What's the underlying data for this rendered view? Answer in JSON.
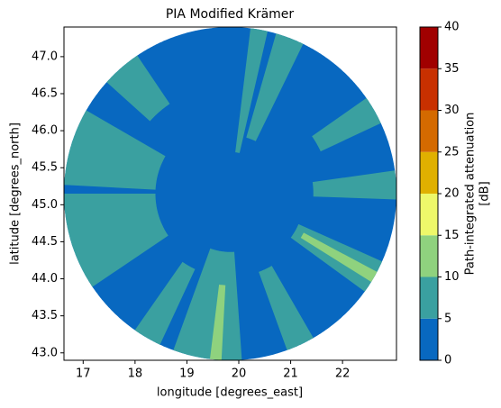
{
  "chart_data": {
    "type": "radar-field",
    "title": "PIA Modified Krämer",
    "x_label": "longitude [degrees_east]",
    "y_label": "latitude [degrees_north]",
    "xlim": [
      16.63,
      23.04
    ],
    "ylim": [
      42.9,
      47.4
    ],
    "xticks": [
      17,
      18,
      19,
      20,
      21,
      22
    ],
    "yticks": [
      {
        "value": 43,
        "label": "43.0"
      },
      43.5,
      {
        "value": 44,
        "label": "44.0"
      },
      44.5,
      {
        "value": 45,
        "label": "45.0"
      },
      45.5,
      {
        "value": 46,
        "label": "46.0"
      },
      46.5,
      {
        "value": 47,
        "label": "47.0"
      }
    ],
    "colorbar_label": [
      "Path-integrated attenuation",
      "[dB]"
    ],
    "levels": [
      0,
      5,
      10,
      15,
      20,
      25,
      30,
      35,
      40
    ],
    "colors": [
      "#0868c0",
      "#3aa0a0",
      "#8fd27e",
      "#eef86a",
      "#e0b000",
      "#d46a00",
      "#c83000",
      "#a00000"
    ],
    "wedges": [
      {
        "az": [
          0,
          360
        ],
        "range": [
          0,
          1
        ],
        "value": 2
      },
      {
        "az": [
          236,
          270
        ],
        "range": [
          0.45,
          1
        ],
        "value": 7
      },
      {
        "az": [
          273,
          300
        ],
        "range": [
          0.45,
          1
        ],
        "value": 7
      },
      {
        "az": [
          312,
          326
        ],
        "range": [
          0.65,
          1
        ],
        "value": 7
      },
      {
        "az": [
          7,
          13
        ],
        "range": [
          0.25,
          1
        ],
        "value": 7
      },
      {
        "az": [
          16,
          26
        ],
        "range": [
          0.35,
          1
        ],
        "value": 7
      },
      {
        "az": [
          55,
          65
        ],
        "range": [
          0.6,
          1
        ],
        "value": 7
      },
      {
        "az": [
          82,
          92
        ],
        "range": [
          0.5,
          1
        ],
        "value": 7
      },
      {
        "az": [
          114,
          126
        ],
        "range": [
          0.45,
          1
        ],
        "value": 7
      },
      {
        "az": [
          118,
          122
        ],
        "range": [
          0.5,
          1
        ],
        "value": 12
      },
      {
        "az": [
          150,
          160
        ],
        "range": [
          0.5,
          1
        ],
        "value": 7
      },
      {
        "az": [
          176,
          200
        ],
        "range": [
          0.35,
          1
        ],
        "value": 7
      },
      {
        "az": [
          183,
          187
        ],
        "range": [
          0.55,
          1
        ],
        "value": 12
      },
      {
        "az": [
          205,
          215
        ],
        "range": [
          0.5,
          1
        ],
        "value": 7
      }
    ]
  }
}
